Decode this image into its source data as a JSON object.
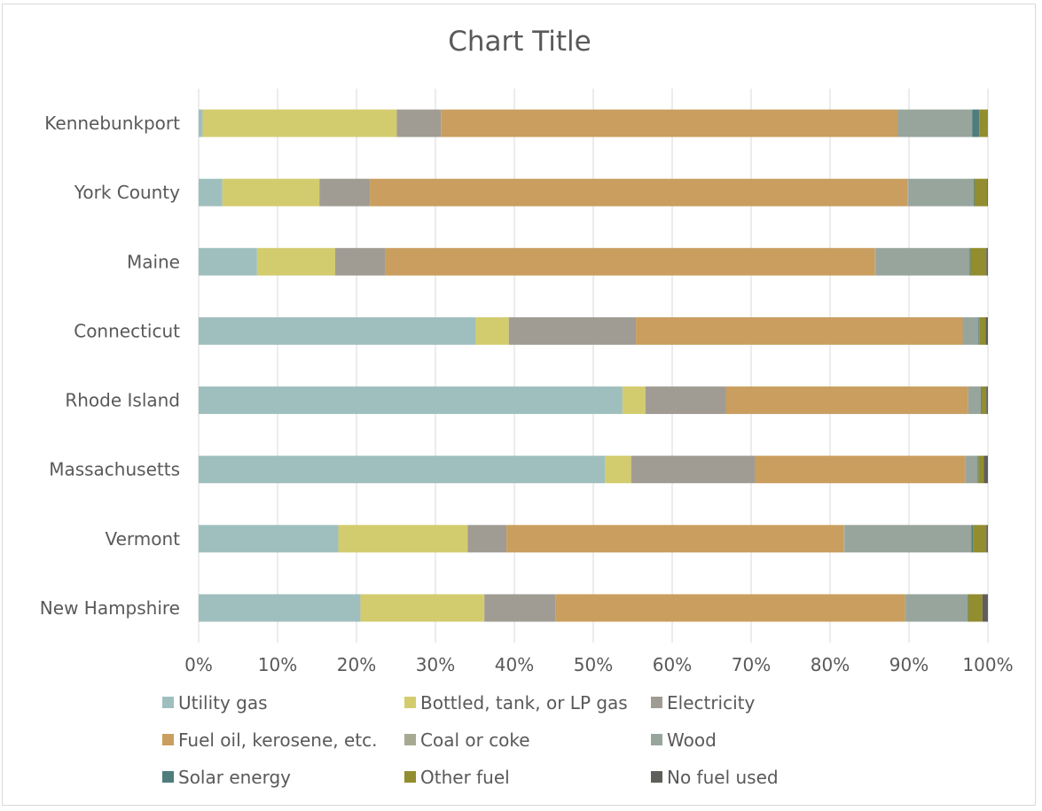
{
  "chart_data": {
    "type": "bar",
    "orientation": "horizontal",
    "stacked": "percent",
    "title": "Chart Title",
    "categories": [
      "Kennebunkport",
      "York County",
      "Maine",
      "Connecticut",
      "Rhode Island",
      "Massachusetts",
      "Vermont",
      "New Hampshire"
    ],
    "xlim": [
      0,
      100
    ],
    "x_ticks": [
      "0%",
      "10%",
      "20%",
      "30%",
      "40%",
      "50%",
      "60%",
      "70%",
      "80%",
      "90%",
      "100%"
    ],
    "grid": "vertical",
    "legend_position": "bottom",
    "series": [
      {
        "name": "Utility gas",
        "color": "#9fbfbe",
        "values": [
          0.5,
          3.0,
          7.4,
          35.1,
          53.7,
          51.5,
          17.7,
          20.5
        ]
      },
      {
        "name": "Bottled, tank, or LP gas",
        "color": "#d3cc6e",
        "values": [
          24.6,
          12.3,
          9.9,
          4.2,
          2.9,
          3.3,
          16.4,
          15.7
        ]
      },
      {
        "name": "Electricity",
        "color": "#a09c94",
        "values": [
          5.6,
          6.4,
          6.3,
          16.1,
          10.2,
          15.7,
          4.9,
          9.0
        ]
      },
      {
        "name": "Fuel oil, kerosene, etc.",
        "color": "#c99e5f",
        "values": [
          57.9,
          68.1,
          62.1,
          41.4,
          30.7,
          26.6,
          42.7,
          44.3
        ]
      },
      {
        "name": "Coal or coke",
        "color": "#a8a993",
        "values": [
          0.0,
          0.1,
          0.1,
          0.0,
          0.0,
          0.0,
          0.2,
          0.1
        ]
      },
      {
        "name": "Wood",
        "color": "#97a59d",
        "values": [
          9.4,
          8.3,
          11.9,
          2.0,
          1.6,
          1.6,
          16.0,
          7.8
        ]
      },
      {
        "name": "Solar energy",
        "color": "#4f7d7d",
        "values": [
          0.9,
          0.1,
          0.1,
          0.1,
          0.1,
          0.1,
          0.2,
          0.1
        ]
      },
      {
        "name": "Other fuel",
        "color": "#928d2e",
        "values": [
          1.1,
          1.6,
          2.0,
          0.8,
          0.6,
          0.7,
          1.7,
          1.8
        ]
      },
      {
        "name": "No fuel used",
        "color": "#5f5e5a",
        "values": [
          0.0,
          0.1,
          0.2,
          0.3,
          0.2,
          0.5,
          0.2,
          0.7
        ]
      }
    ]
  },
  "colors": {
    "gridline": "#d9d9d9",
    "text": "#595959",
    "border": "#d9d9d9"
  }
}
